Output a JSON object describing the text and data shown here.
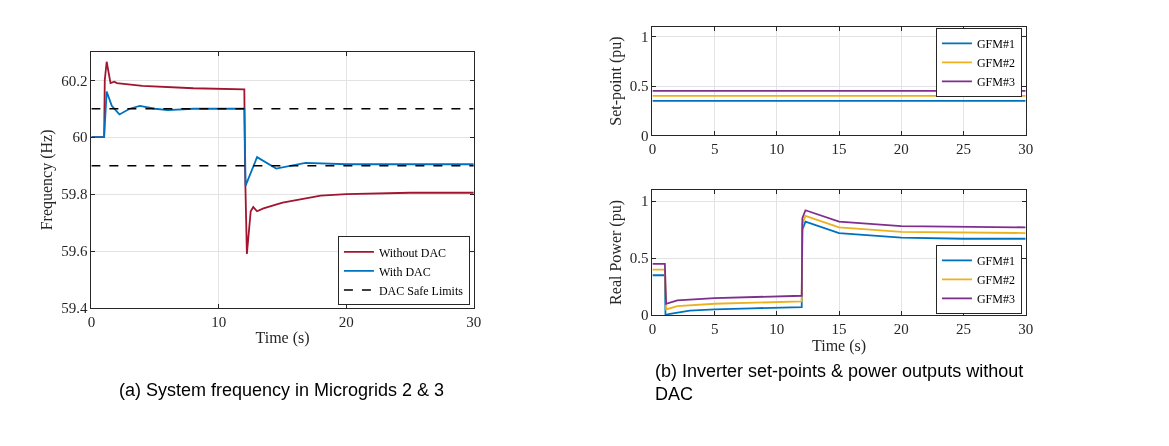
{
  "chart_data": [
    {
      "type": "line",
      "xlabel": "Time (s)",
      "ylabel": "Frequency (Hz)",
      "xlim": [
        0,
        30
      ],
      "xticks": [
        0,
        10,
        20,
        30
      ],
      "ylim": [
        59.4,
        60.3
      ],
      "yticks": [
        59.4,
        59.6,
        59.8,
        60,
        60.2
      ],
      "grid": true,
      "legend": "bottom right",
      "line_style": "solid",
      "series": [
        {
          "name": "Without DAC",
          "color": "#a2142f",
          "x": [
            0,
            1,
            1.05,
            1.2,
            1.5,
            1.8,
            2,
            4,
            8,
            12,
            12.05,
            12.2,
            12.5,
            12.7,
            13,
            13.5,
            15,
            18,
            20,
            25,
            30
          ],
          "values": [
            60,
            60,
            60.2,
            60.265,
            60.19,
            60.195,
            60.19,
            60.18,
            60.172,
            60.168,
            59.9,
            59.59,
            59.74,
            59.755,
            59.74,
            59.75,
            59.77,
            59.795,
            59.8,
            59.805,
            59.805
          ]
        },
        {
          "name": "With DAC",
          "color": "#0072bd",
          "x": [
            0,
            1,
            1.2,
            1.6,
            2.2,
            3,
            3.8,
            5,
            6,
            8,
            12,
            12.1,
            13,
            14.5,
            16.8,
            20,
            30
          ],
          "values": [
            60,
            60,
            60.16,
            60.11,
            60.08,
            60.1,
            60.11,
            60.1,
            60.095,
            60.1,
            60.1,
            59.83,
            59.93,
            59.89,
            59.91,
            59.905,
            59.905
          ]
        }
      ],
      "ref_lines": [
        {
          "axis": "y",
          "value": 60.1,
          "label": "DAC Safe Limits",
          "color": "#000000",
          "line_style": "dashed"
        },
        {
          "axis": "y",
          "value": 59.9,
          "color": "#000000",
          "line_style": "dashed"
        }
      ],
      "annotations": [
        "(a) System frequency in Microgrids 2 & 3"
      ]
    },
    {
      "type": "line",
      "ylabel": "Set-point (pu)",
      "xlim": [
        0,
        30
      ],
      "xticks": [
        0,
        5,
        10,
        15,
        20,
        25,
        30
      ],
      "ylim": [
        0,
        1.1
      ],
      "yticks": [
        0,
        0.5,
        1
      ],
      "grid": true,
      "legend": "top right",
      "line_style": "solid",
      "series": [
        {
          "name": "GFM#1",
          "color": "#0072bd",
          "x": [
            0,
            30
          ],
          "values": [
            0.35,
            0.35
          ]
        },
        {
          "name": "GFM#2",
          "color": "#edb120",
          "x": [
            0,
            30
          ],
          "values": [
            0.4,
            0.4
          ]
        },
        {
          "name": "GFM#3",
          "color": "#7e2f8e",
          "x": [
            0,
            30
          ],
          "values": [
            0.45,
            0.45
          ]
        }
      ]
    },
    {
      "type": "line",
      "xlabel": "Time (s)",
      "ylabel": "Real Power (pu)",
      "xlim": [
        0,
        30
      ],
      "xticks": [
        0,
        5,
        10,
        15,
        20,
        25,
        30
      ],
      "ylim": [
        0,
        1.1
      ],
      "yticks": [
        0,
        0.5,
        1
      ],
      "grid": true,
      "legend": "bottom right",
      "line_style": "solid",
      "series": [
        {
          "name": "GFM#1",
          "color": "#0072bd",
          "x": [
            0,
            1,
            1.05,
            1.3,
            3,
            5,
            8,
            12,
            12.05,
            12.3,
            15,
            20,
            25,
            30
          ],
          "values": [
            0.35,
            0.35,
            0.0,
            0.01,
            0.04,
            0.05,
            0.06,
            0.07,
            0.75,
            0.82,
            0.72,
            0.68,
            0.67,
            0.67
          ]
        },
        {
          "name": "GFM#2",
          "color": "#edb120",
          "x": [
            0,
            1,
            1.1,
            2,
            5,
            12,
            12.05,
            12.3,
            15,
            20,
            30
          ],
          "values": [
            0.4,
            0.4,
            0.05,
            0.08,
            0.1,
            0.12,
            0.8,
            0.87,
            0.77,
            0.73,
            0.72
          ]
        },
        {
          "name": "GFM#3",
          "color": "#7e2f8e",
          "x": [
            0,
            1,
            1.1,
            2,
            5,
            12,
            12.05,
            12.3,
            15,
            20,
            30
          ],
          "values": [
            0.45,
            0.45,
            0.1,
            0.13,
            0.15,
            0.17,
            0.85,
            0.92,
            0.82,
            0.78,
            0.77
          ]
        }
      ],
      "annotations": [
        "(b) Inverter set-points & power outputs without DAC"
      ]
    }
  ]
}
